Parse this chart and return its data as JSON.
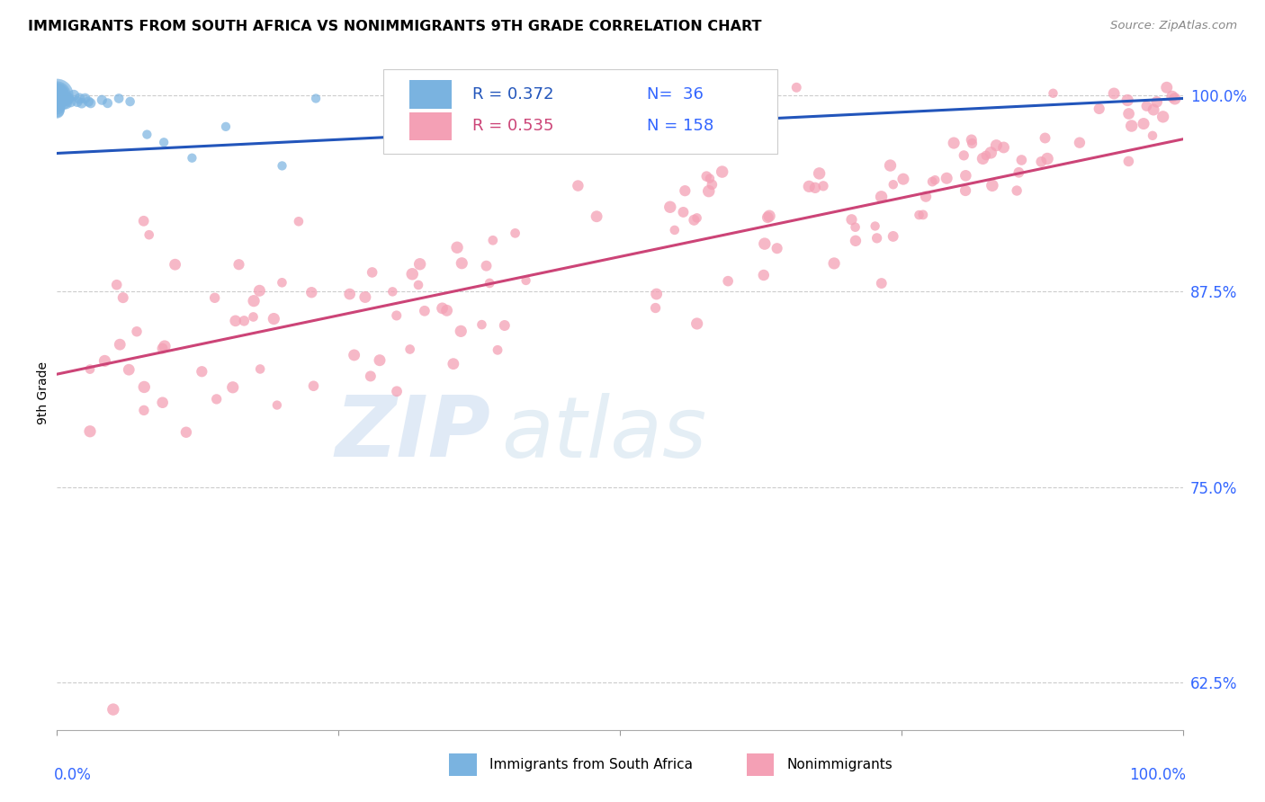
{
  "title": "IMMIGRANTS FROM SOUTH AFRICA VS NONIMMIGRANTS 9TH GRADE CORRELATION CHART",
  "source_text": "Source: ZipAtlas.com",
  "ylabel": "9th Grade",
  "xlim": [
    0.0,
    1.0
  ],
  "ylim": [
    0.595,
    1.025
  ],
  "yticks": [
    0.625,
    0.75,
    0.875,
    1.0
  ],
  "ytick_labels": [
    "62.5%",
    "75.0%",
    "87.5%",
    "100.0%"
  ],
  "background_color": "#ffffff",
  "blue_color": "#7ab3e0",
  "pink_color": "#f4a0b5",
  "trendline_blue": "#2255bb",
  "trendline_pink": "#cc4477",
  "legend_blue_R": "0.372",
  "legend_blue_N": "36",
  "legend_pink_R": "0.535",
  "legend_pink_N": "158",
  "blue_trendline_y0": 0.963,
  "blue_trendline_y1": 0.998,
  "pink_trendline_y0": 0.822,
  "pink_trendline_y1": 0.972,
  "grid_color": "#cccccc",
  "axis_color": "#3366ff"
}
